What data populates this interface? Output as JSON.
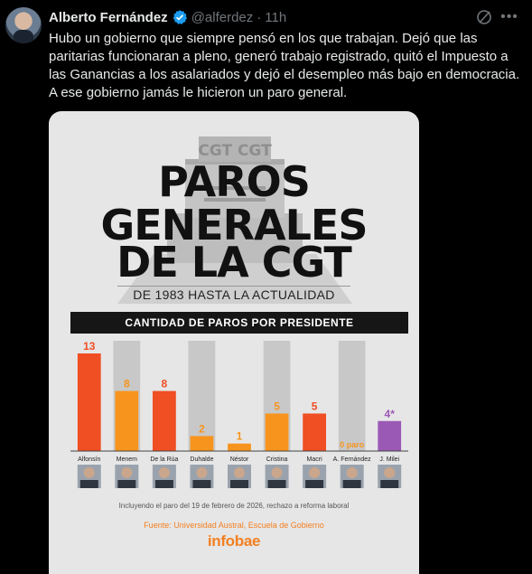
{
  "tweet": {
    "author_name": "Alberto Fernández",
    "handle": "@alferdez",
    "separator": "·",
    "time": "11h",
    "text": "Hubo un gobierno que siempre pensó en los que trabajan. Dejó que las paritarias funcionaran a pleno, generó trabajo registrado, quitó el Impuesto a las Ganancias a los asalariados y dejó el desempleo más bajo en democracia. A ese gobierno jamás le hicieron un paro general."
  },
  "icons": {
    "avatar": "avatar",
    "verified": "verified-badge-icon",
    "grok": "grok-icon",
    "more": "more-icon"
  },
  "colors": {
    "red": "#f04e23",
    "orange": "#f7941d",
    "purple": "#9b59b6",
    "gray_bg": "#c8c8c8",
    "verified_blue": "#1d9bf0",
    "infobae_orange": "#f47f20"
  },
  "infographic": {
    "building_sign": "CGT CGT",
    "title_line1": "PAROS",
    "title_line2": "GENERALES",
    "title_line3": "DE LA CGT",
    "subtitle": "DE 1983 HASTA LA ACTUALIDAD",
    "banner": "CANTIDAD DE PAROS POR PRESIDENTE",
    "footnote": "Incluyendo el paro del 19 de febrero de 2026, rechazo a reforma laboral",
    "source": "Fuente: Universidad Austral, Escuela de Gobierno",
    "logo": "infobae"
  },
  "chart_data": {
    "type": "bar",
    "title": "CANTIDAD DE PAROS POR PRESIDENTE",
    "categories": [
      "Alfonsín",
      "Menem",
      "De la Rúa",
      "Duhalde",
      "Néstor",
      "Cristina",
      "Macri",
      "A. Fernández",
      "J. Milei"
    ],
    "values": [
      13,
      8,
      8,
      2,
      1,
      5,
      5,
      0,
      4
    ],
    "value_labels": [
      "13",
      "8",
      "8",
      "2",
      "1",
      "5",
      "5",
      "0 paro",
      "4*"
    ],
    "bar_colors": [
      "#f04e23",
      "#f7941d",
      "#f04e23",
      "#f7941d",
      "#f7941d",
      "#f7941d",
      "#f04e23",
      "#f7941d",
      "#9b59b6"
    ],
    "background_columns": [
      false,
      true,
      false,
      true,
      false,
      true,
      false,
      true,
      false
    ],
    "ylim": [
      0,
      13
    ],
    "grid": false,
    "legend": "none"
  }
}
